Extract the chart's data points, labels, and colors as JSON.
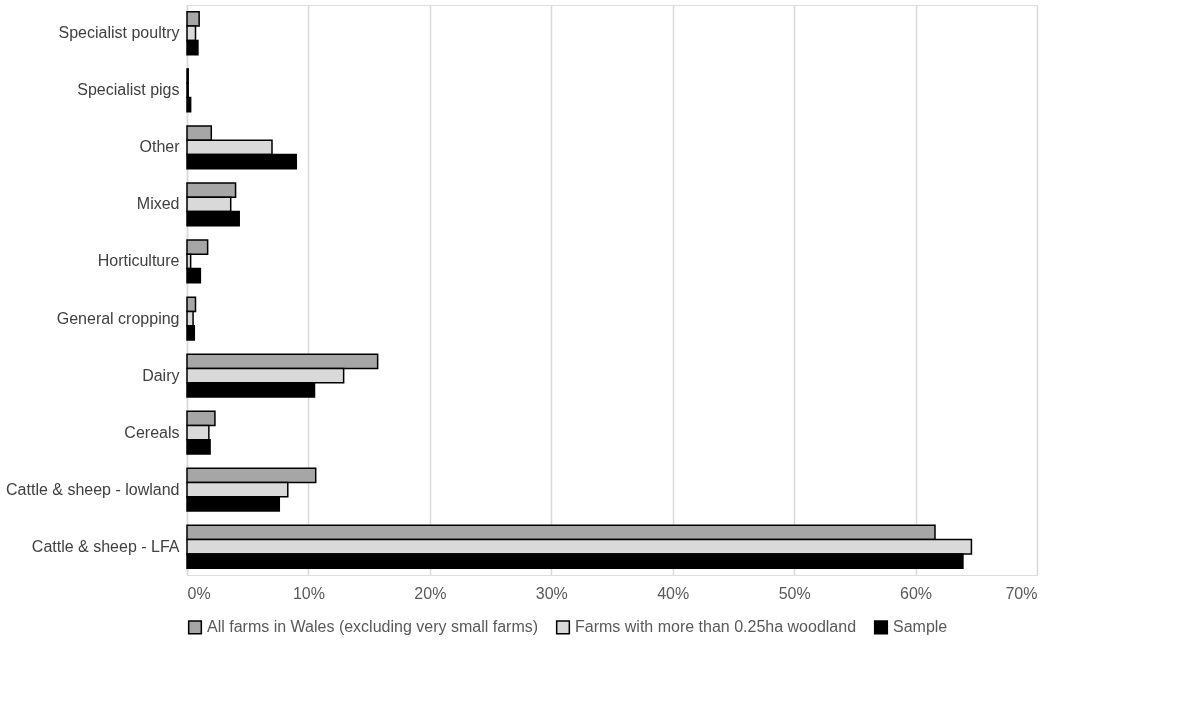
{
  "chart_data": {
    "type": "bar",
    "orientation": "horizontal",
    "categories": [
      "Specialist poultry",
      "Specialist pigs",
      "Other",
      "Mixed",
      "Horticulture",
      "General cropping",
      "Dairy",
      "Cereals",
      "Cattle & sheep - lowland",
      "Cattle & sheep - LFA"
    ],
    "series": [
      {
        "name": "All farms in Wales (excluding very small farms)",
        "color": "#a6a6a6",
        "values": [
          1.0,
          0.1,
          2.0,
          4.0,
          1.7,
          0.7,
          15.7,
          2.3,
          10.6,
          61.6
        ]
      },
      {
        "name": "Farms with more than 0.25ha woodland",
        "color": "#d9d9d9",
        "values": [
          0.7,
          0.1,
          7.0,
          3.6,
          0.3,
          0.5,
          12.9,
          1.8,
          8.3,
          64.6
        ]
      },
      {
        "name": "Sample",
        "color": "#000000",
        "values": [
          0.9,
          0.3,
          9.0,
          4.3,
          1.1,
          0.6,
          10.5,
          1.9,
          7.6,
          63.9
        ]
      }
    ],
    "xlim": [
      0,
      70
    ],
    "xticks": [
      {
        "value": 0,
        "label": "0%"
      },
      {
        "value": 10,
        "label": "10%"
      },
      {
        "value": 20,
        "label": "20%"
      },
      {
        "value": 30,
        "label": "30%"
      },
      {
        "value": 40,
        "label": "40%"
      },
      {
        "value": 50,
        "label": "50%"
      },
      {
        "value": 60,
        "label": "60%"
      },
      {
        "value": 70,
        "label": "70%"
      }
    ],
    "grid": "x",
    "legend": "bottom"
  }
}
